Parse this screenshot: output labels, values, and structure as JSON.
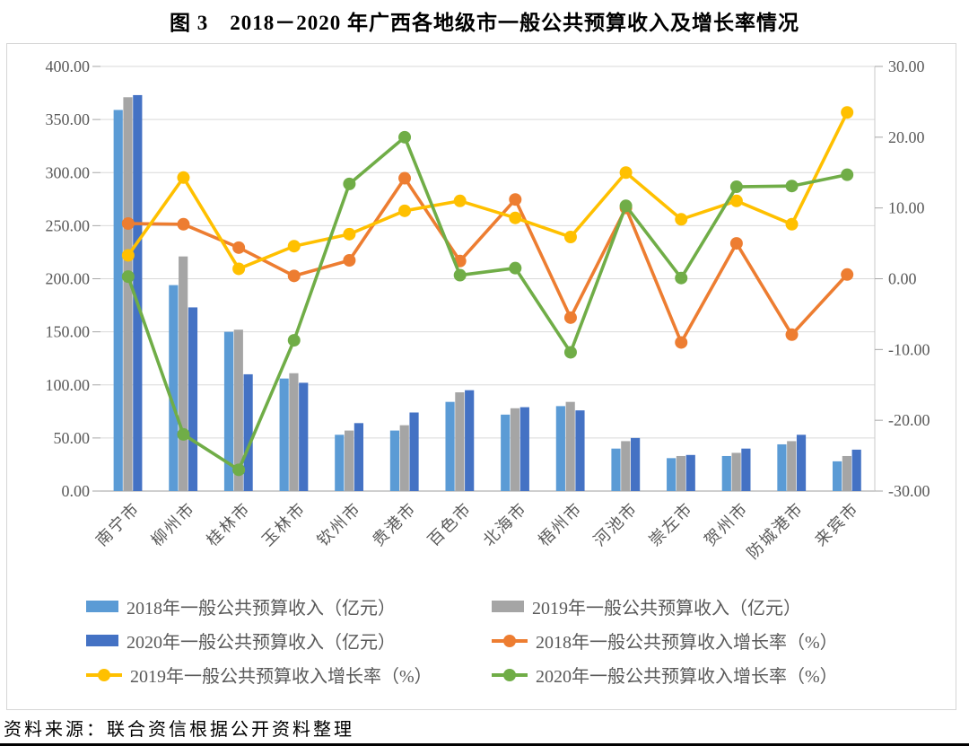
{
  "figure": {
    "title": "图 3　2018－2020 年广西各地级市一般公共预算收入及增长率情况",
    "source": "资料来源：联合资信根据公开资料整理"
  },
  "colors": {
    "bar_2018": "#5B9BD5",
    "bar_2019": "#A5A5A5",
    "bar_2020": "#4472C4",
    "line_2018": "#ED7D31",
    "line_2019": "#FFC000",
    "line_2020": "#70AD47",
    "grid": "#D9D9D9",
    "axis_line": "#BFBFBF",
    "axis_text": "#595959"
  },
  "chart_data": {
    "type": "bar+line-combo",
    "title": "图 3　2018－2020 年广西各地级市一般公共预算收入及增长率情况",
    "grid": true,
    "legend_position": "bottom",
    "categories": [
      "南宁市",
      "柳州市",
      "桂林市",
      "玉林市",
      "钦州市",
      "贵港市",
      "百色市",
      "北海市",
      "梧州市",
      "河池市",
      "崇左市",
      "贺州市",
      "防城港市",
      "来宾市"
    ],
    "left_axis": {
      "min": 0,
      "max": 400,
      "step": 50,
      "tick_labels": [
        "0.00",
        "50.00",
        "100.00",
        "150.00",
        "200.00",
        "250.00",
        "300.00",
        "350.00",
        "400.00"
      ]
    },
    "right_axis": {
      "min": -30,
      "max": 30,
      "step": 10,
      "tick_labels": [
        "-30.00",
        "-20.00",
        "-10.00",
        "0.00",
        "10.00",
        "20.00",
        "30.00"
      ]
    },
    "series": [
      {
        "key": "2018-revenue",
        "type": "bar",
        "axis": "left",
        "color": "#5B9BD5",
        "name": "2018年一般公共预算收入（亿元）",
        "values": [
          359,
          194,
          150,
          106,
          53,
          57,
          84,
          72,
          80,
          40,
          31,
          33,
          44,
          28
        ]
      },
      {
        "key": "2019-revenue",
        "type": "bar",
        "axis": "left",
        "color": "#A5A5A5",
        "name": "2019年一般公共预算收入（亿元）",
        "values": [
          371,
          221,
          152,
          111,
          57,
          62,
          93,
          78,
          84,
          47,
          33,
          36,
          47,
          33
        ]
      },
      {
        "key": "2020-revenue",
        "type": "bar",
        "axis": "left",
        "color": "#4472C4",
        "name": "2020年一般公共预算收入（亿元）",
        "values": [
          373,
          173,
          110,
          102,
          64,
          74,
          95,
          79,
          76,
          50,
          34,
          40,
          53,
          39
        ]
      },
      {
        "key": "2018-growth",
        "type": "line",
        "axis": "right",
        "color": "#ED7D31",
        "name": "2018年一般公共预算收入增长率（%）",
        "values": [
          7.8,
          7.7,
          4.4,
          0.4,
          2.6,
          14.2,
          2.5,
          11.2,
          -5.5,
          10.0,
          -9.0,
          5.0,
          -7.9,
          0.6
        ]
      },
      {
        "key": "2019-growth",
        "type": "line",
        "axis": "right",
        "color": "#FFC000",
        "name": "2019年一般公共预算收入增长率（%）",
        "values": [
          3.3,
          14.3,
          1.4,
          4.6,
          6.3,
          9.6,
          11.0,
          8.6,
          5.9,
          15.0,
          8.4,
          11.0,
          7.7,
          23.5
        ]
      },
      {
        "key": "2020-growth",
        "type": "line",
        "axis": "right",
        "color": "#70AD47",
        "name": "2020年一般公共预算收入增长率（%）",
        "values": [
          0.3,
          -22.0,
          -27.0,
          -8.7,
          13.4,
          20.0,
          0.5,
          1.5,
          -10.4,
          10.3,
          0.1,
          13.0,
          13.1,
          14.7
        ]
      }
    ]
  }
}
